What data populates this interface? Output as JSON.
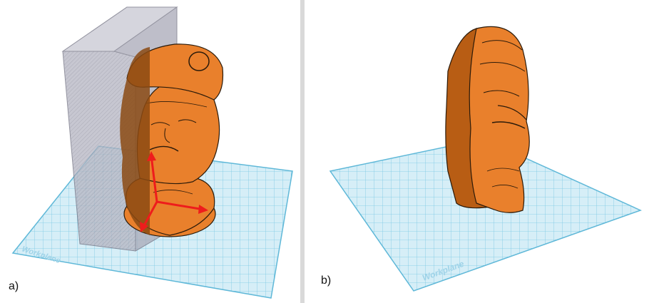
{
  "panels": [
    {
      "label": "a)",
      "workplane_text": "Workplane"
    },
    {
      "label": "b)",
      "workplane_text": "Workplane"
    }
  ],
  "colors": {
    "grid_fill": "#d6eef7",
    "grid_line": "#6cc3e0",
    "model_orange": "#e9802c",
    "model_shadow": "#8b4a13",
    "hole_box": "#9a9aa8",
    "axis_red": "#ee1c1c"
  },
  "icons": [
    "red-axis-arrows-icon"
  ]
}
